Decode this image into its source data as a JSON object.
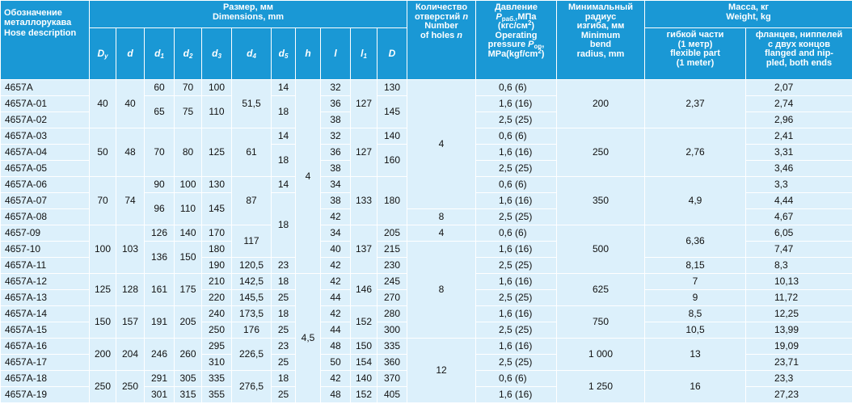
{
  "header": {
    "row1": [
      {
        "lines": [
          [
            {
              "text": "Обозначение"
            }
          ],
          [
            {
              "text": "металлорукава"
            }
          ],
          [
            {
              "text": "Hose description"
            }
          ]
        ]
      },
      {
        "lines": [
          [
            {
              "text": "Размер, мм"
            }
          ],
          [
            {
              "text": "Dimensions, mm"
            }
          ]
        ]
      },
      {
        "lines": [
          [
            {
              "text": "Количество"
            }
          ],
          [
            {
              "text": "отверстий "
            },
            {
              "text": "n",
              "style": "i"
            }
          ],
          [
            {
              "text": "Number"
            }
          ],
          [
            {
              "text": "of holes "
            },
            {
              "text": "n",
              "style": "i"
            }
          ]
        ]
      },
      {
        "lines": [
          [
            {
              "text": "Давление"
            }
          ],
          [
            {
              "text": "P",
              "style": "i"
            },
            {
              "text": "раб.",
              "style": "sub"
            },
            {
              "text": ",МПа"
            }
          ],
          [
            {
              "text": "(кгс/см"
            },
            {
              "text": "2",
              "style": "sup"
            },
            {
              "text": ")"
            }
          ],
          [
            {
              "text": "Operating"
            }
          ],
          [
            {
              "text": "pressure "
            },
            {
              "text": "P",
              "style": "i"
            },
            {
              "text": "op",
              "style": "sub"
            },
            {
              "text": ","
            }
          ],
          [
            {
              "text": "MPa(kgf/cm"
            },
            {
              "text": "2",
              "style": "sup"
            },
            {
              "text": ")"
            }
          ]
        ]
      },
      {
        "lines": [
          [
            {
              "text": "Минимальный"
            }
          ],
          [
            {
              "text": "радиус"
            }
          ],
          [
            {
              "text": "изгиба, мм"
            }
          ],
          [
            {
              "text": "Minimum"
            }
          ],
          [
            {
              "text": "bend"
            }
          ],
          [
            {
              "text": "radius, mm"
            }
          ]
        ]
      },
      {
        "lines": [
          [
            {
              "text": "Масса, кг"
            }
          ],
          [
            {
              "text": "Weight, kg"
            }
          ]
        ]
      }
    ],
    "row2": [
      {
        "lines": [
          [
            {
              "text": "D",
              "style": "i"
            },
            {
              "text": "y",
              "style": "sub"
            }
          ]
        ]
      },
      {
        "lines": [
          [
            {
              "text": "d",
              "style": "i"
            }
          ]
        ]
      },
      {
        "lines": [
          [
            {
              "text": "d",
              "style": "i"
            },
            {
              "text": "1",
              "style": "sub"
            }
          ]
        ]
      },
      {
        "lines": [
          [
            {
              "text": "d",
              "style": "i"
            },
            {
              "text": "2",
              "style": "sub"
            }
          ]
        ]
      },
      {
        "lines": [
          [
            {
              "text": "d",
              "style": "i"
            },
            {
              "text": "3",
              "style": "sub"
            }
          ]
        ]
      },
      {
        "lines": [
          [
            {
              "text": "d",
              "style": "i"
            },
            {
              "text": "4",
              "style": "sub"
            }
          ]
        ]
      },
      {
        "lines": [
          [
            {
              "text": "d",
              "style": "i"
            },
            {
              "text": "5",
              "style": "sub"
            }
          ]
        ]
      },
      {
        "lines": [
          [
            {
              "text": "h",
              "style": "i"
            }
          ]
        ]
      },
      {
        "lines": [
          [
            {
              "text": "l",
              "style": "i"
            }
          ]
        ]
      },
      {
        "lines": [
          [
            {
              "text": "l",
              "style": "i"
            },
            {
              "text": "1",
              "style": "sub"
            }
          ]
        ]
      },
      {
        "lines": [
          [
            {
              "text": "D",
              "style": "i"
            }
          ]
        ]
      },
      {
        "lines": [
          [
            {
              "text": "гибкой части"
            }
          ],
          [
            {
              "text": "(1 метр)"
            }
          ],
          [
            {
              "text": "flexible part"
            }
          ],
          [
            {
              "text": "(1 meter)"
            }
          ]
        ]
      },
      {
        "lines": [
          [
            {
              "text": "фланцев, ниппелей"
            }
          ],
          [
            {
              "text": "с двух концов"
            }
          ],
          [
            {
              "text": "flanged and nip-"
            }
          ],
          [
            {
              "text": "pled, both ends"
            }
          ]
        ]
      }
    ]
  },
  "body": [
    [
      "4657A",
      "4657A-01",
      "4657A-02",
      "4657A-03",
      "4657A-04",
      "4657A-05",
      "4657A-06",
      "4657A-07",
      "4657A-08",
      "4657-09",
      "4657-10",
      "4657A-11",
      "4657A-12",
      "4657A-13",
      "4657A-14",
      "4657A-15",
      "4657A-16",
      "4657A-17",
      "4657A-18",
      "4657A-19"
    ],
    [
      "40",
      "50",
      "70",
      "100",
      "125",
      "150",
      "200",
      "250"
    ],
    [
      "40",
      "48",
      "74",
      "103",
      "128",
      "157",
      "204",
      "250"
    ],
    [
      "60",
      "65",
      "70",
      "90",
      "96",
      "126",
      "136",
      "161",
      "191",
      "246",
      "291",
      "301"
    ],
    [
      "70",
      "75",
      "80",
      "100",
      "110",
      "140",
      "150",
      "175",
      "205",
      "260",
      "305",
      "315"
    ],
    [
      "100",
      "110",
      "125",
      "130",
      "145",
      "170",
      "180",
      "190",
      "210",
      "220",
      "240",
      "250",
      "295",
      "310",
      "335",
      "355"
    ],
    [
      "51,5",
      "61",
      "87",
      "117",
      "120,5",
      "142,5",
      "145,5",
      "173,5",
      "176",
      "226,5",
      "276,5"
    ],
    [
      "14",
      "18",
      "14",
      "18",
      "14",
      "18",
      "23",
      "18",
      "25",
      "18",
      "25",
      "23",
      "25",
      "18",
      "25"
    ],
    [
      "4",
      "4,5"
    ],
    [
      "32",
      "36",
      "38",
      "32",
      "36",
      "38",
      "34",
      "38",
      "42",
      "34",
      "40",
      "42",
      "42",
      "44",
      "42",
      "44",
      "48",
      "50",
      "42",
      "48"
    ],
    [
      "127",
      "127",
      "133",
      "137",
      "146",
      "152",
      "150",
      "154",
      "140",
      "152"
    ],
    [
      "130",
      "145",
      "140",
      "160",
      "180",
      "205",
      "215",
      "230",
      "245",
      "270",
      "280",
      "300",
      "335",
      "360",
      "370",
      "405"
    ],
    [
      "4",
      "8",
      "4",
      "8",
      "12"
    ],
    [
      "0,6 (6)",
      "1,6 (16)",
      "2,5 (25)",
      "0,6 (6)",
      "1,6 (16)",
      "2,5 (25)",
      "0,6 (6)",
      "1,6 (16)",
      "2,5 (25)",
      "0,6 (6)",
      "1,6 (16)",
      "2,5 (25)",
      "1,6 (16)",
      "2,5 (25)",
      "1,6 (16)",
      "2,5 (25)",
      "1,6 (16)",
      "2,5 (25)",
      "0,6 (6)",
      "1,6 (16)"
    ],
    [
      "200",
      "250",
      "350",
      "500",
      "625",
      "750",
      "1 000",
      "1 250"
    ],
    [
      "2,37",
      "2,76",
      "4,9",
      "6,36",
      "8,15",
      "7",
      "9",
      "8,5",
      "10,5",
      "13",
      "16"
    ],
    [
      "2,07",
      "2,74",
      "2,96",
      "2,41",
      "3,31",
      "3,46",
      "3,3",
      "4,44",
      "4,67",
      "6,05",
      "7,47",
      "8,3",
      "10,13",
      "11,72",
      "12,25",
      "13,99",
      "19,09",
      "23,71",
      "23,3",
      "27,23"
    ]
  ]
}
